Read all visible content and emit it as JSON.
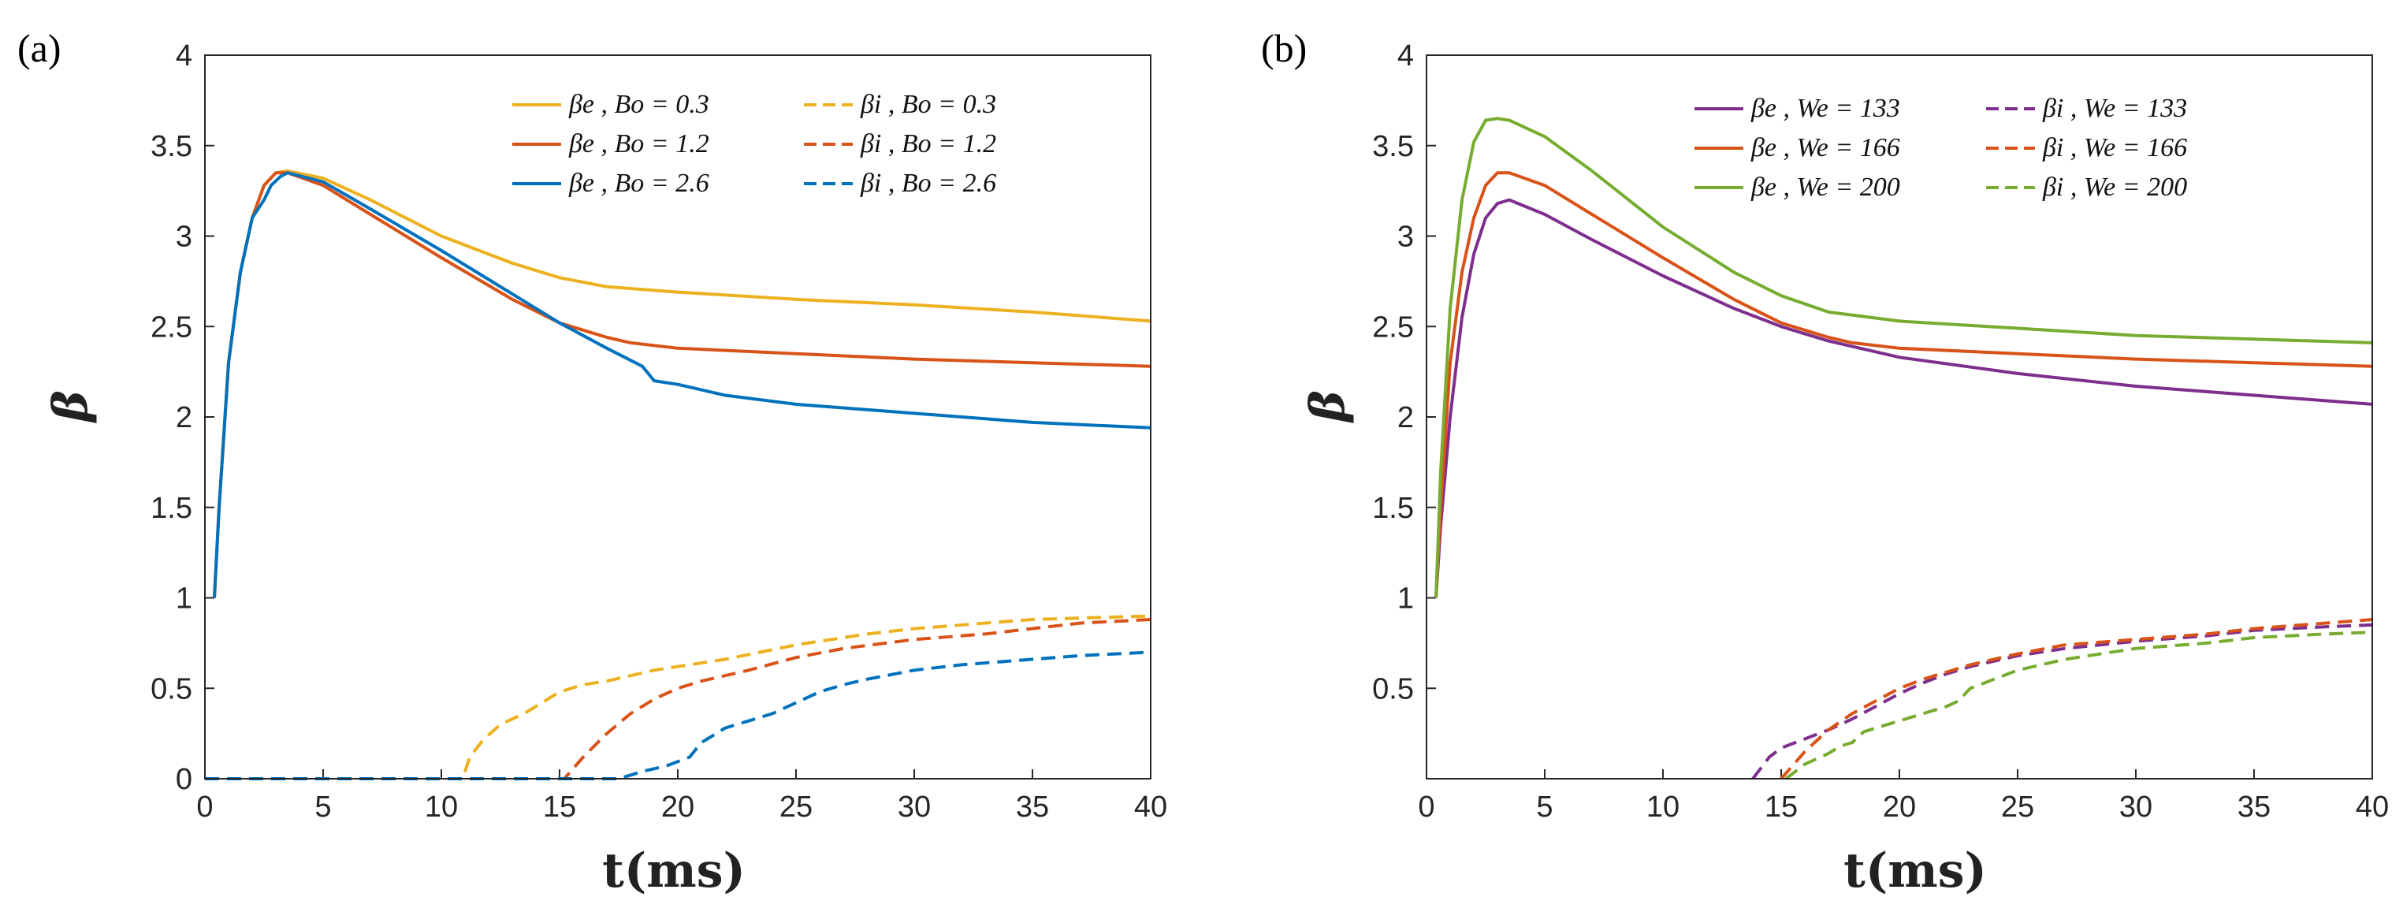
{
  "chart_data": [
    {
      "type": "line",
      "panel_label": "(a)",
      "xlabel": "t(ms)",
      "ylabel": "β",
      "xlim": [
        0,
        40
      ],
      "ylim": [
        0,
        4
      ],
      "xticks": [
        "0",
        "5",
        "10",
        "15",
        "20",
        "25",
        "30",
        "35",
        "40"
      ],
      "yticks": [
        "0",
        "0.5",
        "1",
        "1.5",
        "2",
        "2.5",
        "3",
        "3.5",
        "4"
      ],
      "grid": false,
      "legend_position": "top-right",
      "series": [
        {
          "name": "βe , Bo = 0.3",
          "color": "#EDB120",
          "dash": false,
          "x": [
            0.4,
            0.6,
            1,
            1.5,
            2,
            2.5,
            3,
            3.5,
            5,
            7,
            10,
            13,
            15,
            17,
            20,
            25,
            30,
            35,
            40
          ],
          "y": [
            1,
            1.5,
            2.3,
            2.8,
            3.1,
            3.28,
            3.35,
            3.36,
            3.32,
            3.2,
            3.0,
            2.85,
            2.77,
            2.72,
            2.69,
            2.65,
            2.62,
            2.58,
            2.53
          ]
        },
        {
          "name": "βe , Bo = 1.2",
          "color": "#D95319",
          "dash": false,
          "x": [
            0.4,
            0.6,
            1,
            1.5,
            2,
            2.5,
            3,
            3.5,
            5,
            7,
            10,
            13,
            15,
            17,
            18,
            20,
            25,
            30,
            35,
            40
          ],
          "y": [
            1,
            1.5,
            2.3,
            2.8,
            3.1,
            3.28,
            3.35,
            3.35,
            3.28,
            3.12,
            2.88,
            2.65,
            2.52,
            2.44,
            2.41,
            2.38,
            2.35,
            2.32,
            2.3,
            2.28
          ]
        },
        {
          "name": "βe , Bo = 2.6",
          "color": "#0072BD",
          "dash": false,
          "x": [
            0.4,
            0.6,
            1,
            1.5,
            2,
            2.5,
            2.8,
            3.2,
            3.5,
            5,
            7,
            10,
            13,
            15,
            17,
            18.5,
            19,
            20,
            22,
            25,
            30,
            35,
            40
          ],
          "y": [
            1,
            1.5,
            2.3,
            2.8,
            3.1,
            3.2,
            3.28,
            3.33,
            3.35,
            3.3,
            3.15,
            2.92,
            2.68,
            2.52,
            2.38,
            2.28,
            2.2,
            2.18,
            2.12,
            2.07,
            2.02,
            1.97,
            1.94
          ]
        },
        {
          "name": "βi , Bo = 0.3",
          "color": "#EDB120",
          "dash": true,
          "x": [
            0,
            10.9,
            11.2,
            11.8,
            12.5,
            13.5,
            14,
            15,
            16,
            17,
            18,
            19,
            20,
            22,
            25,
            28,
            30,
            35,
            40
          ],
          "y": [
            0,
            0,
            0.12,
            0.22,
            0.3,
            0.36,
            0.4,
            0.48,
            0.52,
            0.54,
            0.57,
            0.6,
            0.62,
            0.66,
            0.74,
            0.8,
            0.83,
            0.88,
            0.9
          ]
        },
        {
          "name": "βi , Bo = 1.2",
          "color": "#D95319",
          "dash": true,
          "x": [
            0,
            15.2,
            16,
            17,
            18,
            19,
            20,
            21,
            22,
            23,
            25,
            27,
            30,
            33,
            35,
            37,
            40
          ],
          "y": [
            0,
            0,
            0.12,
            0.25,
            0.36,
            0.44,
            0.5,
            0.54,
            0.57,
            0.6,
            0.67,
            0.72,
            0.77,
            0.8,
            0.83,
            0.86,
            0.88
          ]
        },
        {
          "name": "βi , Bo = 2.6",
          "color": "#0072BD",
          "dash": true,
          "x": [
            0,
            17.5,
            18.5,
            19.5,
            20.5,
            21,
            22,
            23,
            24,
            25,
            26,
            27,
            28,
            30,
            32,
            35,
            37,
            40
          ],
          "y": [
            0,
            0,
            0.04,
            0.07,
            0.12,
            0.2,
            0.28,
            0.32,
            0.36,
            0.42,
            0.48,
            0.52,
            0.55,
            0.6,
            0.63,
            0.66,
            0.68,
            0.7
          ]
        }
      ]
    },
    {
      "type": "line",
      "panel_label": "(b)",
      "xlabel": "t(ms)",
      "ylabel": "β",
      "xlim": [
        0,
        40
      ],
      "ylim": [
        0,
        4
      ],
      "xticks": [
        "0",
        "5",
        "10",
        "15",
        "20",
        "25",
        "30",
        "35",
        "40"
      ],
      "yticks": [
        "0.5",
        "1",
        "1.5",
        "2",
        "2.5",
        "3",
        "3.5",
        "4"
      ],
      "grid": false,
      "legend_position": "top-right",
      "series": [
        {
          "name": "βe , We = 133",
          "color": "#7E2F8E",
          "dash": false,
          "x": [
            0.4,
            0.6,
            1,
            1.5,
            2,
            2.5,
            3,
            3.5,
            5,
            7,
            10,
            13,
            15,
            17,
            20,
            25,
            30,
            35,
            40
          ],
          "y": [
            1,
            1.4,
            2.0,
            2.55,
            2.9,
            3.1,
            3.18,
            3.2,
            3.12,
            2.98,
            2.78,
            2.6,
            2.5,
            2.42,
            2.33,
            2.24,
            2.17,
            2.12,
            2.07
          ]
        },
        {
          "name": "βe , We = 166",
          "color": "#D95319",
          "dash": false,
          "x": [
            0.4,
            0.6,
            1,
            1.5,
            2,
            2.5,
            3,
            3.5,
            5,
            7,
            10,
            13,
            15,
            17,
            18,
            20,
            25,
            30,
            35,
            40
          ],
          "y": [
            1,
            1.5,
            2.3,
            2.8,
            3.1,
            3.28,
            3.35,
            3.35,
            3.28,
            3.12,
            2.88,
            2.65,
            2.52,
            2.44,
            2.41,
            2.38,
            2.35,
            2.32,
            2.3,
            2.28
          ]
        },
        {
          "name": "βe , We = 200",
          "color": "#77AC30",
          "dash": false,
          "x": [
            0.4,
            0.6,
            1,
            1.5,
            2,
            2.5,
            3,
            3.5,
            5,
            7,
            10,
            13,
            15,
            17,
            20,
            25,
            30,
            35,
            40
          ],
          "y": [
            1,
            1.7,
            2.6,
            3.2,
            3.52,
            3.64,
            3.65,
            3.64,
            3.55,
            3.36,
            3.05,
            2.8,
            2.67,
            2.58,
            2.53,
            2.49,
            2.45,
            2.43,
            2.41
          ]
        },
        {
          "name": "βi , We = 133",
          "color": "#7E2F8E",
          "dash": true,
          "x": [
            13.8,
            14.5,
            15,
            16,
            17,
            18,
            19,
            20,
            21,
            22,
            23,
            25,
            27,
            30,
            33,
            35,
            38,
            40
          ],
          "y": [
            0,
            0.12,
            0.17,
            0.22,
            0.27,
            0.33,
            0.4,
            0.47,
            0.53,
            0.58,
            0.62,
            0.68,
            0.72,
            0.76,
            0.79,
            0.82,
            0.84,
            0.85
          ]
        },
        {
          "name": "βi , We = 166",
          "color": "#D95319",
          "dash": true,
          "x": [
            15,
            16,
            17,
            18,
            19,
            20,
            21,
            22,
            23,
            25,
            27,
            30,
            33,
            35,
            38,
            40
          ],
          "y": [
            0,
            0.15,
            0.27,
            0.36,
            0.43,
            0.5,
            0.55,
            0.59,
            0.63,
            0.69,
            0.74,
            0.77,
            0.8,
            0.83,
            0.86,
            0.88
          ]
        },
        {
          "name": "βi , We = 200",
          "color": "#77AC30",
          "dash": true,
          "x": [
            15.2,
            16,
            17,
            17.5,
            18,
            18.5,
            19,
            20,
            21,
            22,
            22.5,
            23,
            25,
            26,
            27,
            30,
            33,
            35,
            38,
            40
          ],
          "y": [
            0,
            0.08,
            0.14,
            0.18,
            0.2,
            0.26,
            0.28,
            0.32,
            0.36,
            0.4,
            0.43,
            0.5,
            0.6,
            0.63,
            0.66,
            0.72,
            0.75,
            0.78,
            0.8,
            0.81
          ]
        }
      ]
    }
  ]
}
